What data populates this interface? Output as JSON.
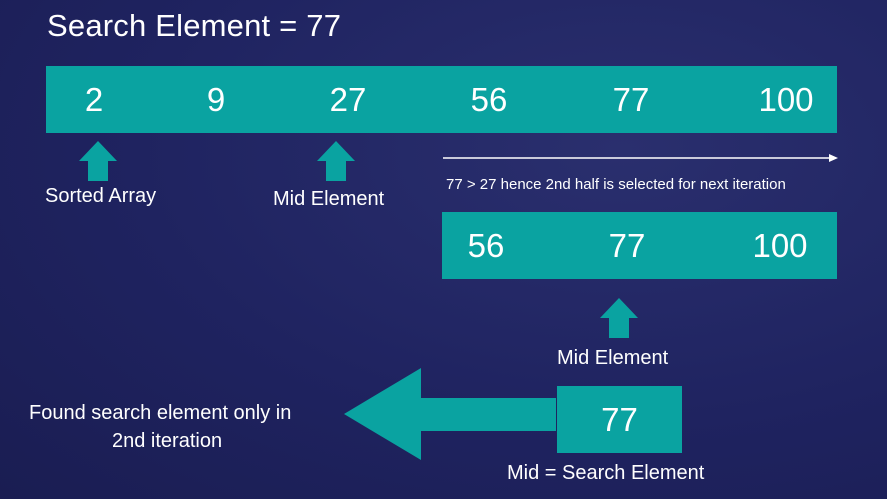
{
  "title": "Search Element = 77",
  "array_full": [
    "2",
    "9",
    "27",
    "56",
    "77",
    "100"
  ],
  "array_half": [
    "56",
    "77",
    "100"
  ],
  "mid_value": "77",
  "labels": {
    "sorted_array": "Sorted Array",
    "mid_element_1": "Mid Element",
    "mid_element_2": "Mid Element",
    "iteration_note": "77 > 27 hence 2nd half is selected for next iteration",
    "found_line1": "Found search element only in",
    "found_line2": "2nd iteration",
    "mid_equals": "Mid  = Search Element"
  },
  "colors": {
    "background": "#1f2360",
    "accent": "#0aa3a1",
    "text": "#ffffff"
  }
}
